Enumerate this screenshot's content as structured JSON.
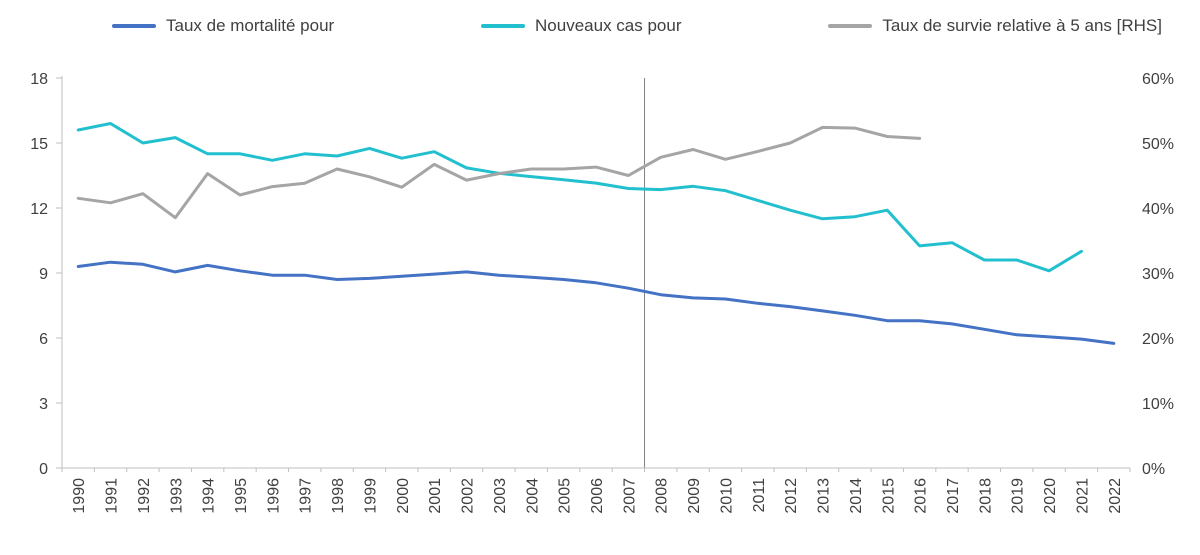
{
  "chart_data": {
    "type": "line",
    "title": "",
    "legend_position": "top",
    "grid": false,
    "axis_color": "#BFBFBF",
    "vline_color": "#808080",
    "tick_text_color": "#404040",
    "vline_category": "2008",
    "categories": [
      "1990",
      "1991",
      "1992",
      "1993",
      "1994",
      "1995",
      "1996",
      "1997",
      "1998",
      "1999",
      "2000",
      "2001",
      "2002",
      "2003",
      "2004",
      "2005",
      "2006",
      "2007",
      "2008",
      "2009",
      "2010",
      "2011",
      "2012",
      "2013",
      "2014",
      "2015",
      "2016",
      "2017",
      "2018",
      "2019",
      "2020",
      "2021",
      "2022"
    ],
    "left_axis": {
      "min": 0,
      "max": 18,
      "ticks": [
        0,
        3,
        6,
        9,
        12,
        15,
        18
      ],
      "suffix": ""
    },
    "right_axis": {
      "min": 0,
      "max": 60,
      "ticks": [
        0,
        10,
        20,
        30,
        40,
        50,
        60
      ],
      "suffix": "%"
    },
    "series": [
      {
        "name": "Taux de mortalité pour",
        "color": "#4472C4",
        "axis": "left",
        "values": [
          9.3,
          9.5,
          9.4,
          9.05,
          9.35,
          9.1,
          8.9,
          8.9,
          8.7,
          8.75,
          8.85,
          8.95,
          9.05,
          8.9,
          8.8,
          8.7,
          8.55,
          8.3,
          8.0,
          7.85,
          7.8,
          7.6,
          7.45,
          7.25,
          7.05,
          6.8,
          6.8,
          6.65,
          6.4,
          6.15,
          6.05,
          5.95,
          5.75
        ]
      },
      {
        "name": "Nouveaux cas pour",
        "color": "#22C0CE",
        "axis": "left",
        "values": [
          15.6,
          15.9,
          15.0,
          15.25,
          14.5,
          14.5,
          14.2,
          14.5,
          14.4,
          14.75,
          14.3,
          14.6,
          13.85,
          13.6,
          13.45,
          13.3,
          13.15,
          12.9,
          12.85,
          13.0,
          12.8,
          12.35,
          11.9,
          11.5,
          11.6,
          11.9,
          10.25,
          10.4,
          9.6,
          9.6,
          9.1,
          10.0,
          null
        ]
      },
      {
        "name": "Taux de survie relative à 5 ans [RHS]",
        "color": "#A5A5A5",
        "axis": "right",
        "values": [
          41.5,
          40.8,
          42.2,
          38.5,
          45.3,
          42.0,
          43.3,
          43.8,
          46.0,
          44.8,
          43.2,
          46.7,
          44.3,
          45.3,
          46.0,
          46.0,
          46.3,
          45.0,
          47.8,
          49.0,
          47.5,
          48.7,
          50.0,
          52.4,
          52.3,
          51.0,
          50.7,
          null,
          null,
          null,
          null,
          null,
          null
        ]
      }
    ]
  }
}
